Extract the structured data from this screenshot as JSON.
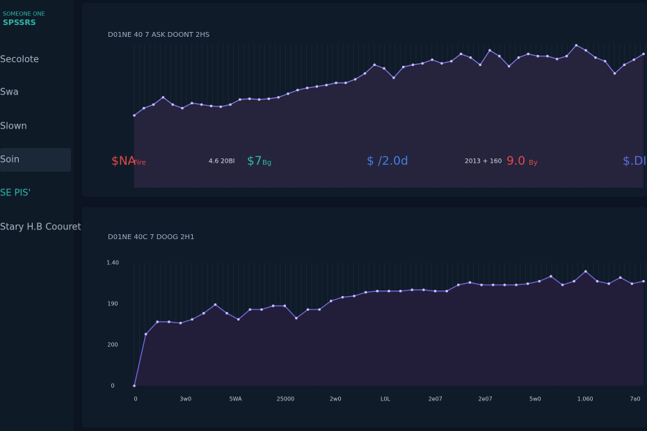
{
  "sidebar": {
    "logo": [
      "SOMEONE ONE",
      "SPSSRS"
    ],
    "items": [
      "Secolote",
      "Swa",
      "Slown",
      "Soin",
      "SE PIS'",
      "Stary H.B Coouret"
    ],
    "active": 3
  },
  "panels": [
    {
      "title": "D01NE 40 7 ASK DOONT 2HS",
      "chart_data": {
        "type": "area",
        "color": "#8a7cf5",
        "fill": "#2a2440",
        "ylim": [
          0,
          100
        ],
        "values": [
          50,
          55,
          57.5,
          62.5,
          57.5,
          55,
          58.5,
          57.5,
          56.5,
          56,
          57.5,
          61,
          61.5,
          61,
          61.5,
          62.5,
          65,
          67.5,
          69,
          70,
          71,
          72.5,
          72.5,
          75,
          79,
          85,
          82.5,
          76,
          83.5,
          85,
          86,
          88.5,
          86,
          87.5,
          92.5,
          90,
          85,
          95,
          91,
          84,
          90,
          92.5,
          91,
          91,
          89,
          91,
          98.5,
          95,
          90,
          87.5,
          79,
          85,
          88.5,
          92.5
        ]
      },
      "stats": [
        {
          "text": "$NA",
          "small": "Fire",
          "color": "#e04a4a"
        },
        {
          "text": "4.6 20BI",
          "small": "",
          "color": "#d8dde6"
        },
        {
          "text": "$7",
          "small": "Bg",
          "color": "#2fb8a8"
        },
        {
          "text": "$ /2.0d",
          "small": "",
          "color": "#3f7fe0"
        },
        {
          "text": "2013 + 160",
          "small": "",
          "color": "#d8dde6"
        },
        {
          "text": "9.0",
          "small": "By",
          "color": "#e04a4a"
        },
        {
          "text": "$.DI",
          "small": "",
          "color": "#5a6ee8"
        }
      ]
    },
    {
      "title": "D01NE 40C 7 DOOG 2H1",
      "chart_data": {
        "type": "area",
        "color": "#7a6ce8",
        "fill": "#261f3c",
        "ylim": [
          0,
          100
        ],
        "values": [
          0,
          42,
          52,
          52,
          51,
          54,
          59,
          66,
          59,
          54,
          62,
          62,
          65,
          65,
          55,
          62,
          62,
          69,
          72,
          73,
          76,
          77,
          77,
          77,
          78,
          78,
          77,
          77,
          82,
          84,
          82,
          82,
          82,
          82,
          83,
          85,
          89,
          82,
          85,
          93,
          85,
          83,
          88,
          83,
          85
        ],
        "y_labels": [
          "1.40",
          "190",
          "200",
          "0"
        ],
        "x_labels": [
          "0",
          "3w0",
          "5WA",
          "25000",
          "2w0",
          "L0L",
          "2e07",
          "2e07",
          "5w0",
          "1.060",
          "7a0"
        ]
      }
    }
  ]
}
